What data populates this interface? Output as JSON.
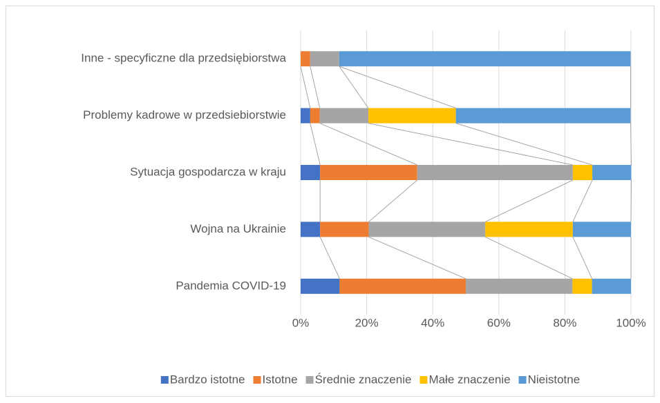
{
  "chart_data": {
    "type": "stacked_bar_horizontal_100",
    "categories": [
      "Inne - specyficzne dla przedsiębiorstwa",
      "Problemy kadrowe w przedsiebiorstwie",
      "Sytuacja gospodarcza w kraju",
      "Wojna na Ukrainie",
      "Pandemia COVID-19"
    ],
    "series": [
      {
        "name": "Bardzo istotne",
        "color": "#4472c4",
        "values": [
          0,
          2.9,
          5.9,
          5.9,
          11.8
        ]
      },
      {
        "name": "Istotne",
        "color": "#ed7d31",
        "values": [
          2.9,
          2.9,
          29.4,
          14.7,
          38.2
        ]
      },
      {
        "name": "Średnie znaczenie",
        "color": "#a5a5a5",
        "values": [
          8.8,
          14.7,
          47.1,
          35.3,
          32.3
        ]
      },
      {
        "name": "Małe znaczenie",
        "color": "#ffc000",
        "values": [
          0,
          26.5,
          5.9,
          26.5,
          5.9
        ]
      },
      {
        "name": "Nieistotne",
        "color": "#5b9bd5",
        "values": [
          88.2,
          52.9,
          11.8,
          17.6,
          11.8
        ]
      }
    ],
    "xlim": [
      0,
      100
    ],
    "xticks": [
      {
        "value": 0,
        "label": "0%"
      },
      {
        "value": 20,
        "label": "20%"
      },
      {
        "value": 40,
        "label": "40%"
      },
      {
        "value": 60,
        "label": "60%"
      },
      {
        "value": 80,
        "label": "80%"
      },
      {
        "value": 100,
        "label": "100%"
      }
    ],
    "grid": true,
    "legend": "bottom"
  }
}
